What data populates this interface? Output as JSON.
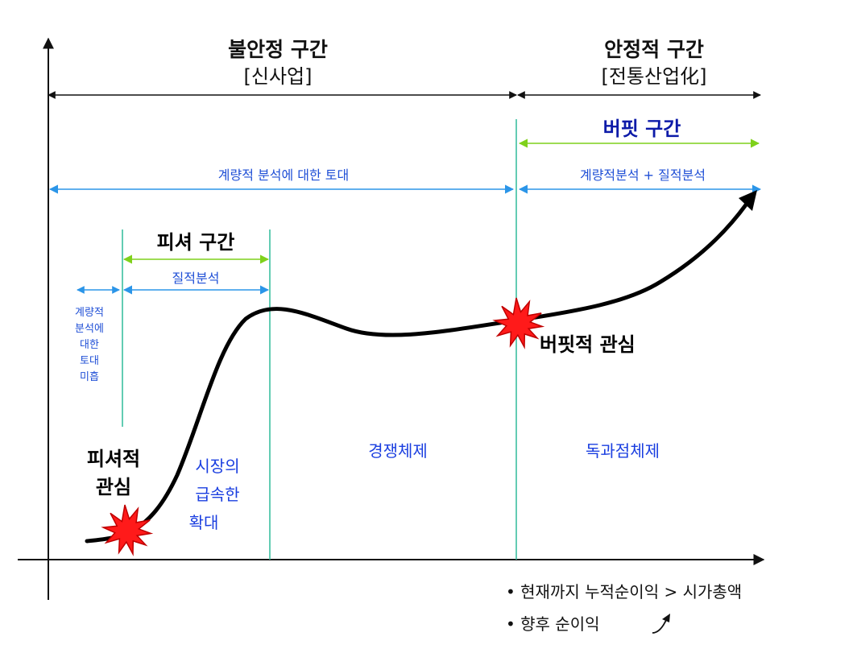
{
  "header": {
    "unstable_title": "불안정 구간",
    "unstable_sub": "[신사업]",
    "stable_title": "안정적 구간",
    "stable_sub": "[전통산업化]"
  },
  "zones": {
    "buffett_zone": "버핏 구간",
    "fisher_zone": "피셔 구간"
  },
  "ranges": {
    "quant_base": "계량적 분석에 대한 토대",
    "quant_plus_qual": "계량적분석 + 질적분석",
    "qual": "질적분석",
    "quant_lacking_lines": [
      "계량적",
      "분석에",
      "대한",
      "토대",
      "미흡"
    ]
  },
  "phases": {
    "rapid_growth_lines": [
      "시장의",
      "급속한",
      "확대"
    ],
    "competition": "경쟁체제",
    "oligopoly": "독과점체제"
  },
  "interests": {
    "fisher_lines": [
      "피셔적",
      "관심"
    ],
    "buffett": "버핏적 관심"
  },
  "notes": {
    "note1": "• 현재까지 누적순이익 > 시가총액",
    "note2": "• 향후 순이익"
  },
  "colors": {
    "header_arrow": "#111111",
    "green_arrow": "#7fd11b",
    "blue_arrow": "#2b95e8",
    "divider": "#3cbfa0",
    "curve": "#000000",
    "star_fill": "#ff1a1a",
    "star_stroke": "#c00000",
    "buffett_text": "#0c1aa8"
  }
}
